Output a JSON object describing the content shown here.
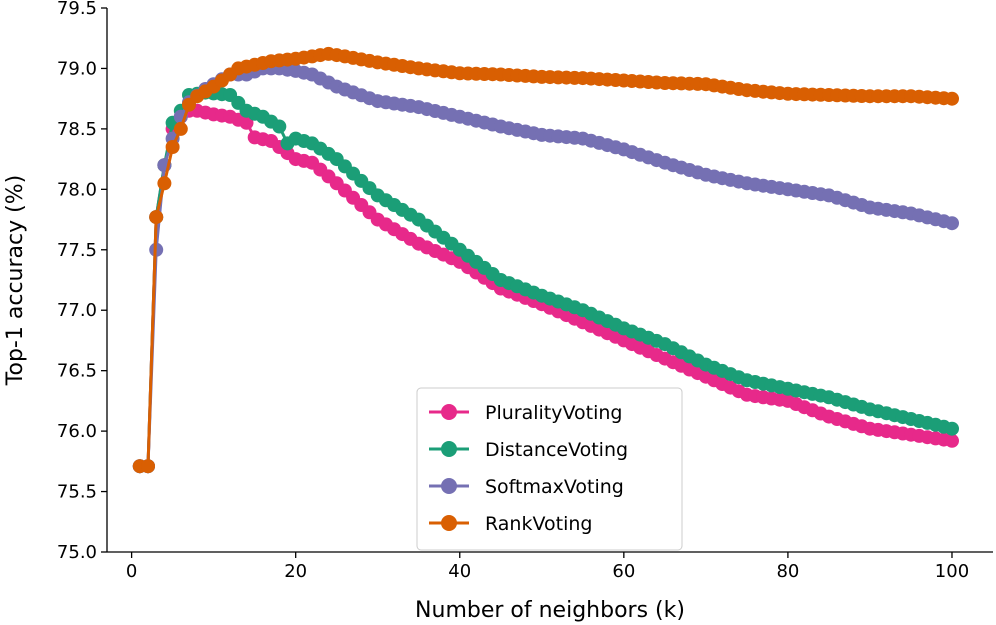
{
  "chart_data": {
    "type": "line",
    "title": "",
    "xlabel": "Number of neighbors (k)",
    "ylabel": "Top-1 accuracy (%)",
    "xlim": [
      -3,
      105
    ],
    "ylim": [
      75.0,
      79.5
    ],
    "xticks": [
      0,
      20,
      40,
      60,
      80,
      100
    ],
    "yticks": [
      75.0,
      75.5,
      76.0,
      76.5,
      77.0,
      77.5,
      78.0,
      78.5,
      79.0,
      79.5
    ],
    "grid": false,
    "legend_position": "lower-center",
    "series": [
      {
        "name": "PluralityVoting",
        "color": "#e7298a",
        "anchors": [
          [
            1,
            75.71
          ],
          [
            2,
            75.71
          ],
          [
            3,
            77.77
          ],
          [
            4,
            78.2
          ],
          [
            5,
            78.5
          ],
          [
            6,
            78.6
          ],
          [
            7,
            78.65
          ],
          [
            8,
            78.65
          ],
          [
            10,
            78.62
          ],
          [
            12,
            78.6
          ],
          [
            14,
            78.55
          ],
          [
            15,
            78.43
          ],
          [
            17,
            78.4
          ],
          [
            20,
            78.25
          ],
          [
            22,
            78.22
          ],
          [
            25,
            78.05
          ],
          [
            30,
            77.75
          ],
          [
            35,
            77.55
          ],
          [
            40,
            77.4
          ],
          [
            45,
            77.18
          ],
          [
            50,
            77.05
          ],
          [
            55,
            76.9
          ],
          [
            60,
            76.75
          ],
          [
            65,
            76.6
          ],
          [
            70,
            76.45
          ],
          [
            75,
            76.3
          ],
          [
            80,
            76.25
          ],
          [
            85,
            76.12
          ],
          [
            90,
            76.02
          ],
          [
            95,
            75.97
          ],
          [
            100,
            75.92
          ]
        ]
      },
      {
        "name": "DistanceVoting",
        "color": "#1b9e77",
        "anchors": [
          [
            1,
            75.71
          ],
          [
            2,
            75.71
          ],
          [
            3,
            77.77
          ],
          [
            4,
            78.2
          ],
          [
            5,
            78.55
          ],
          [
            6,
            78.65
          ],
          [
            7,
            78.78
          ],
          [
            9,
            78.8
          ],
          [
            12,
            78.78
          ],
          [
            14,
            78.65
          ],
          [
            16,
            78.6
          ],
          [
            18,
            78.52
          ],
          [
            19,
            78.38
          ],
          [
            20,
            78.42
          ],
          [
            22,
            78.38
          ],
          [
            25,
            78.25
          ],
          [
            30,
            77.95
          ],
          [
            35,
            77.75
          ],
          [
            40,
            77.5
          ],
          [
            45,
            77.25
          ],
          [
            50,
            77.12
          ],
          [
            55,
            77.0
          ],
          [
            60,
            76.85
          ],
          [
            65,
            76.72
          ],
          [
            70,
            76.55
          ],
          [
            75,
            76.42
          ],
          [
            80,
            76.35
          ],
          [
            85,
            76.28
          ],
          [
            90,
            76.18
          ],
          [
            95,
            76.1
          ],
          [
            100,
            76.02
          ]
        ]
      },
      {
        "name": "SoftmaxVoting",
        "color": "#7570b3",
        "anchors": [
          [
            1,
            75.71
          ],
          [
            2,
            75.71
          ],
          [
            3,
            77.5
          ],
          [
            4,
            78.2
          ],
          [
            5,
            78.42
          ],
          [
            6,
            78.6
          ],
          [
            7,
            78.72
          ],
          [
            9,
            78.83
          ],
          [
            12,
            78.95
          ],
          [
            14,
            78.95
          ],
          [
            16,
            79.0
          ],
          [
            18,
            79.0
          ],
          [
            20,
            78.98
          ],
          [
            22,
            78.95
          ],
          [
            25,
            78.85
          ],
          [
            30,
            78.73
          ],
          [
            35,
            78.68
          ],
          [
            40,
            78.6
          ],
          [
            45,
            78.52
          ],
          [
            50,
            78.45
          ],
          [
            55,
            78.42
          ],
          [
            60,
            78.33
          ],
          [
            65,
            78.22
          ],
          [
            70,
            78.12
          ],
          [
            75,
            78.05
          ],
          [
            80,
            78.0
          ],
          [
            85,
            77.95
          ],
          [
            90,
            77.85
          ],
          [
            95,
            77.8
          ],
          [
            100,
            77.72
          ]
        ]
      },
      {
        "name": "RankVoting",
        "color": "#d95f02",
        "anchors": [
          [
            1,
            75.71
          ],
          [
            2,
            75.71
          ],
          [
            3,
            77.77
          ],
          [
            4,
            78.05
          ],
          [
            5,
            78.35
          ],
          [
            6,
            78.5
          ],
          [
            7,
            78.7
          ],
          [
            8,
            78.77
          ],
          [
            10,
            78.85
          ],
          [
            12,
            78.95
          ],
          [
            13,
            79.0
          ],
          [
            15,
            79.03
          ],
          [
            17,
            79.06
          ],
          [
            20,
            79.08
          ],
          [
            22,
            79.1
          ],
          [
            24,
            79.12
          ],
          [
            26,
            79.1
          ],
          [
            30,
            79.05
          ],
          [
            35,
            79.0
          ],
          [
            40,
            78.96
          ],
          [
            45,
            78.95
          ],
          [
            50,
            78.93
          ],
          [
            55,
            78.92
          ],
          [
            60,
            78.9
          ],
          [
            65,
            78.88
          ],
          [
            70,
            78.87
          ],
          [
            75,
            78.82
          ],
          [
            80,
            78.79
          ],
          [
            85,
            78.78
          ],
          [
            90,
            78.77
          ],
          [
            95,
            78.77
          ],
          [
            100,
            78.75
          ]
        ]
      }
    ]
  }
}
